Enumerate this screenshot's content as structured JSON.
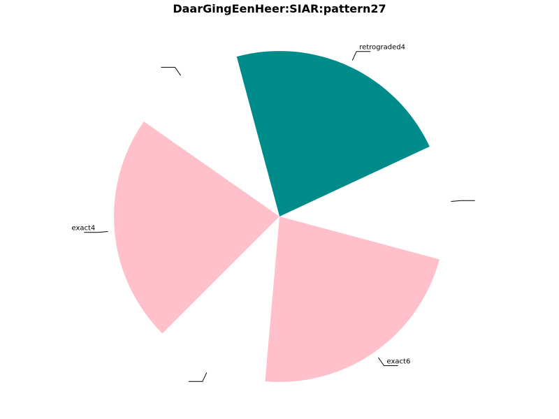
{
  "chart_data": {
    "type": "pie",
    "title": "DaarGingEenHeer:SIAR:pattern27",
    "slices": [
      {
        "label": "",
        "value": 1,
        "color": "#ffffff"
      },
      {
        "label": "retrograded4",
        "value": 2,
        "color": "#008b8b"
      },
      {
        "label": "",
        "value": 1,
        "color": "#ffffff"
      },
      {
        "label": "exact4",
        "value": 2,
        "color": "#ffc0cb"
      },
      {
        "label": "",
        "value": 1,
        "color": "#ffffff"
      },
      {
        "label": "exact6",
        "value": 2,
        "color": "#ffc0cb"
      }
    ],
    "start_angle_deg": -15,
    "direction": "counterclockwise",
    "legend": "none"
  }
}
